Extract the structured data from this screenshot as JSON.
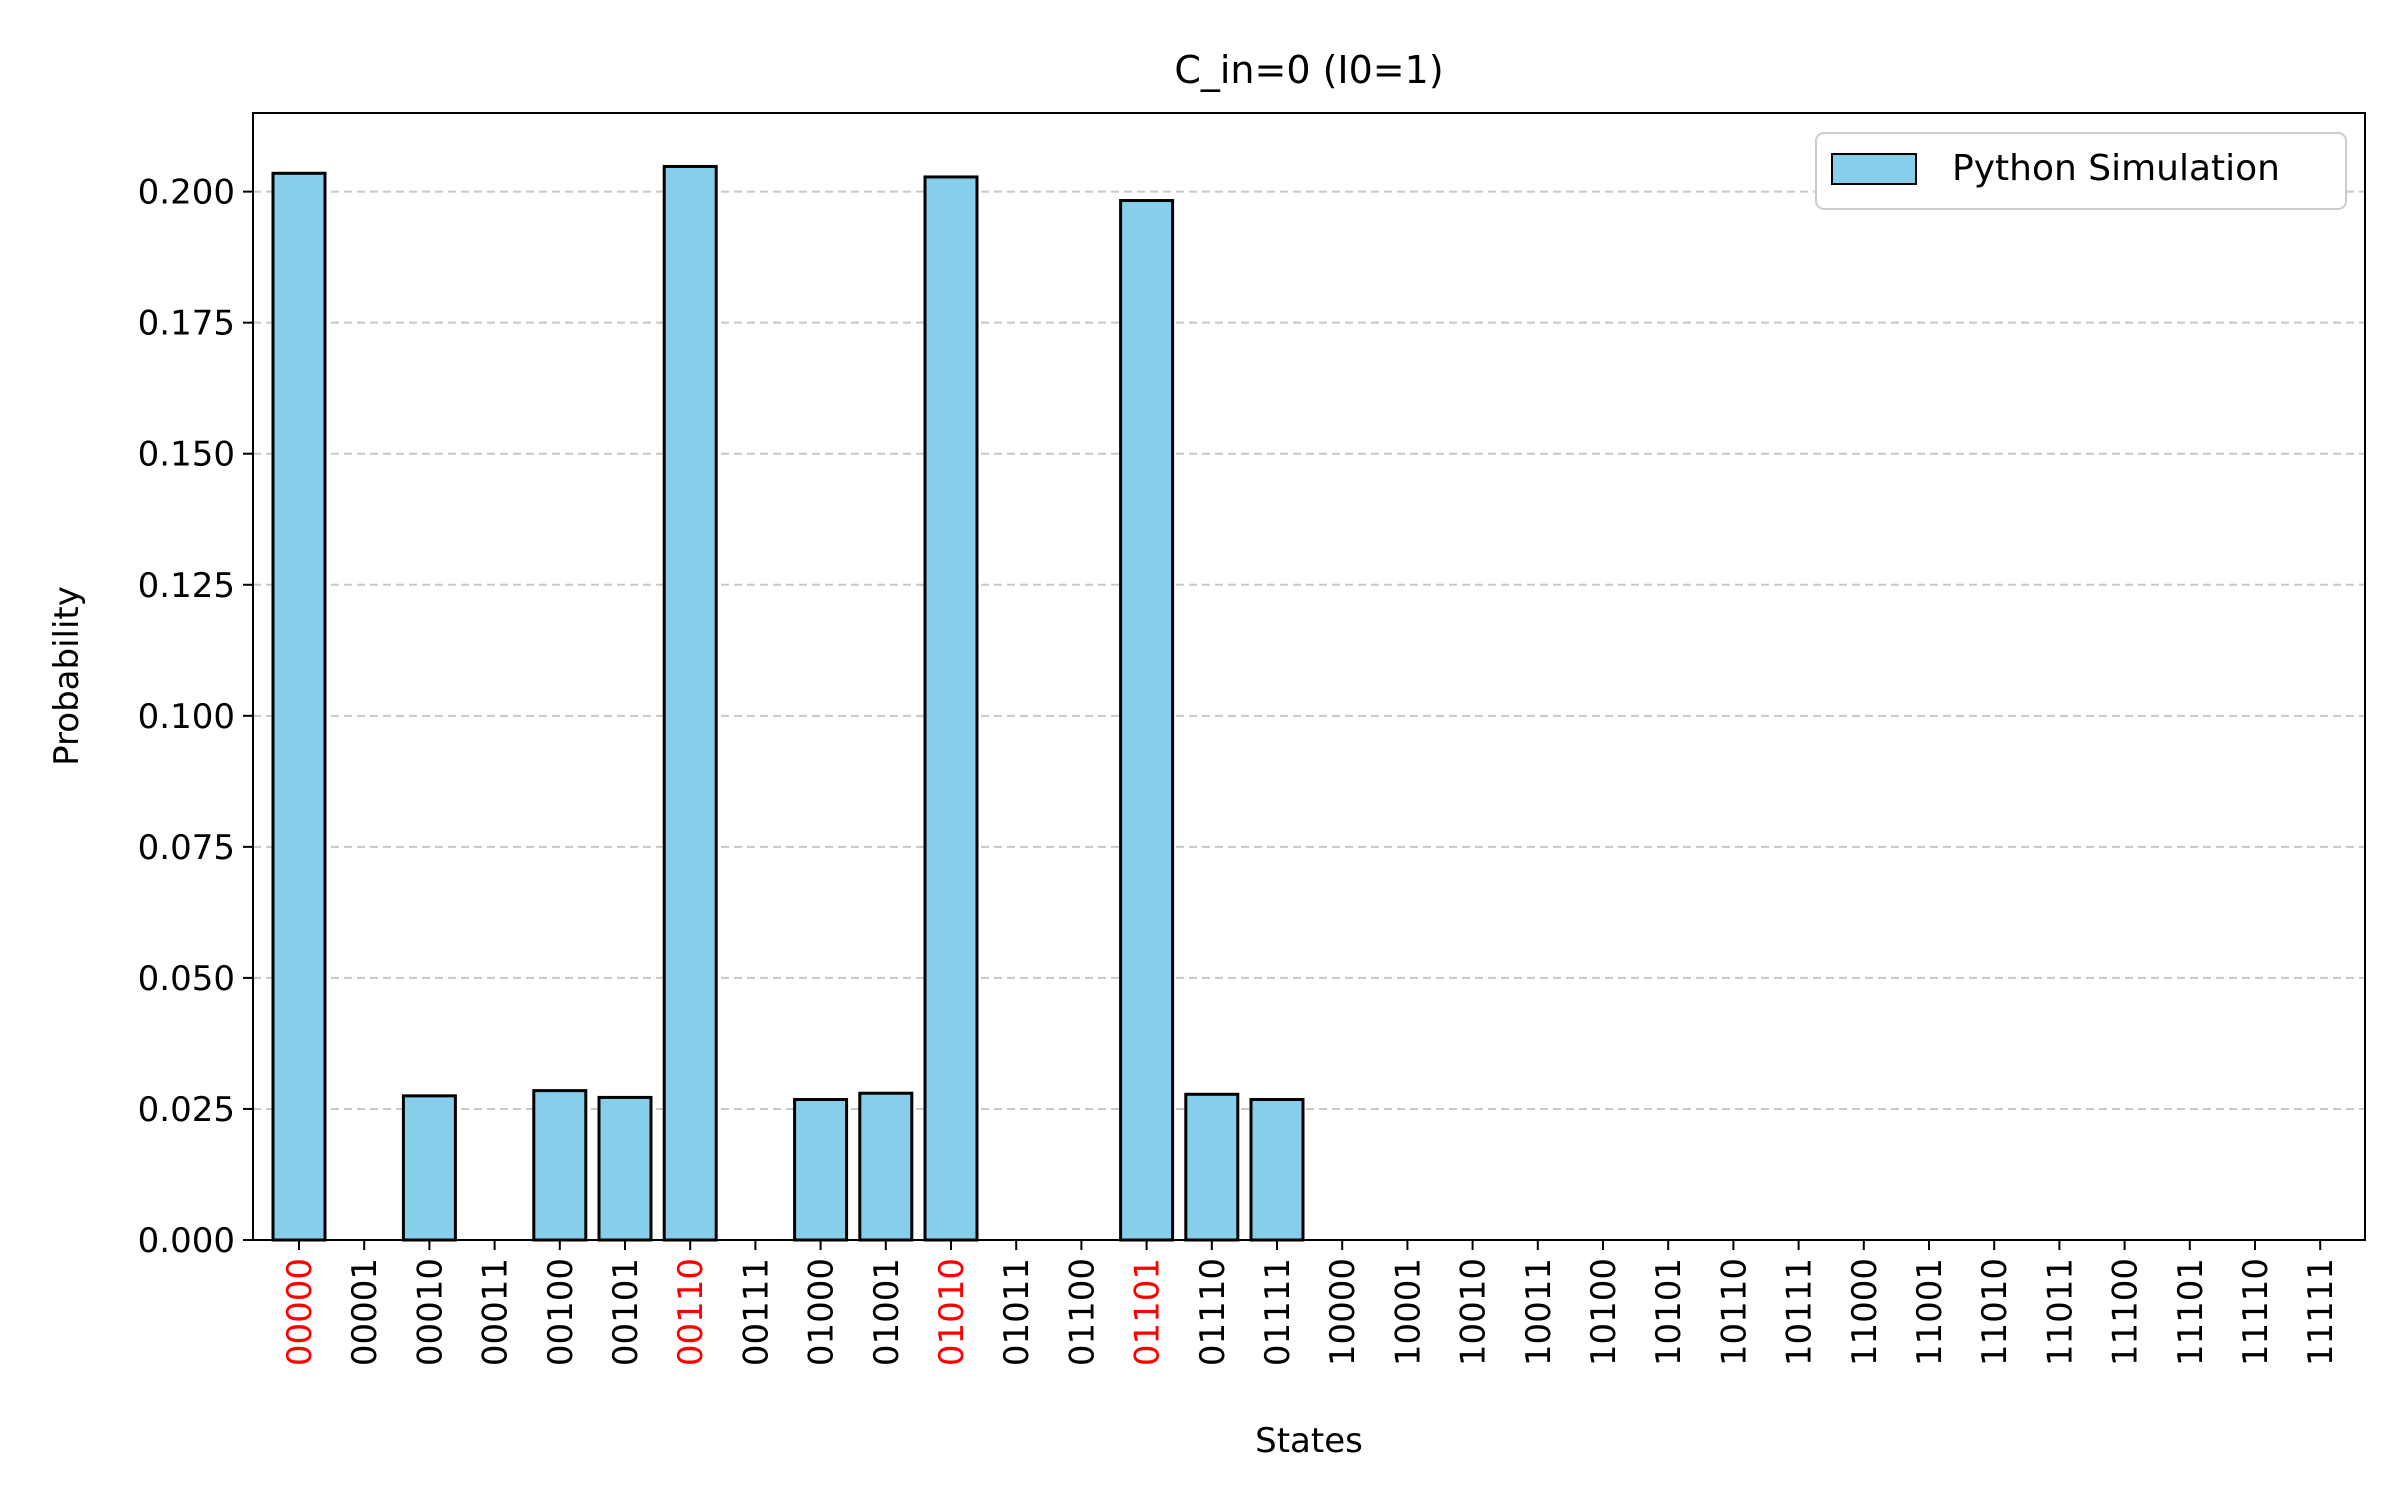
{
  "chart_data": {
    "type": "bar",
    "title": "C_in=0 (I0=1)",
    "xlabel": "States",
    "ylabel": "Probability",
    "ylim": [
      0,
      0.215
    ],
    "yticks": [
      "0.000",
      "0.025",
      "0.050",
      "0.075",
      "0.100",
      "0.125",
      "0.150",
      "0.175",
      "0.200"
    ],
    "grid": "y-dashed",
    "legend_position": "top-right",
    "categories": [
      "00000",
      "00001",
      "00010",
      "00011",
      "00100",
      "00101",
      "00110",
      "00111",
      "01000",
      "01001",
      "01010",
      "01011",
      "01100",
      "01101",
      "01110",
      "01111",
      "10000",
      "10001",
      "10010",
      "10011",
      "10100",
      "10101",
      "10110",
      "10111",
      "11000",
      "11001",
      "11010",
      "11011",
      "11100",
      "11101",
      "11110",
      "11111"
    ],
    "highlighted_categories": [
      "00000",
      "00110",
      "01010",
      "01101"
    ],
    "series": [
      {
        "name": "Python Simulation",
        "color": "#87CEEB",
        "edge_color": "#000000",
        "values": [
          0.2035,
          0.0,
          0.0275,
          0.0,
          0.0285,
          0.0272,
          0.2048,
          0.0,
          0.0268,
          0.028,
          0.2028,
          0.0,
          0.0,
          0.1983,
          0.0278,
          0.0268,
          0.0,
          0.0,
          0.0,
          0.0,
          0.0,
          0.0,
          0.0,
          0.0,
          0.0,
          0.0,
          0.0,
          0.0,
          0.0,
          0.0,
          0.0,
          0.0
        ]
      }
    ],
    "colors": {
      "highlight_label": "#FF0000",
      "normal_label": "#000000",
      "grid": "#C8C8C8"
    }
  }
}
